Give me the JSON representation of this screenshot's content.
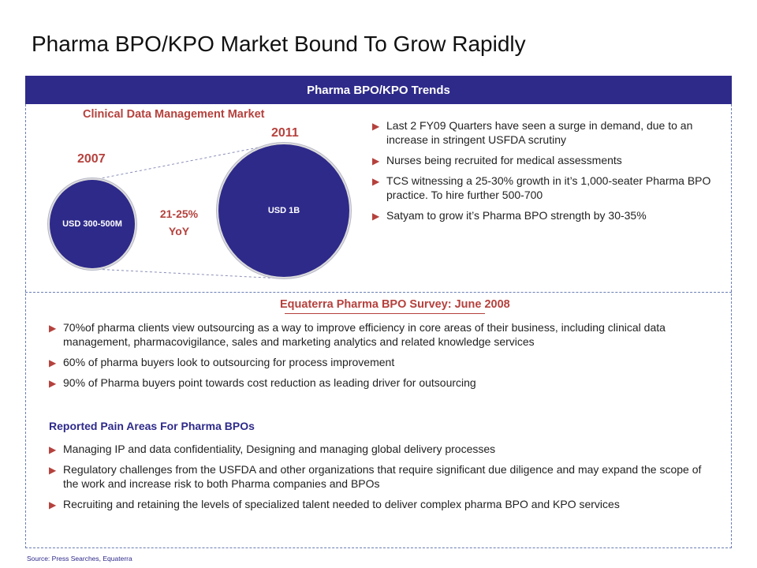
{
  "title": "Pharma BPO/KPO Market Bound To Grow Rapidly",
  "panel_header": "Pharma BPO/KPO Trends",
  "clinical": {
    "title": "Clinical Data Management Market",
    "year_left": "2007",
    "year_right": "2011",
    "bubble_left": "USD 300-500M",
    "bubble_right": "USD 1B",
    "growth_line1": "21-25%",
    "growth_line2": "YoY"
  },
  "trends": [
    "Last 2 FY09 Quarters have seen a surge in demand, due to an increase in stringent USFDA scrutiny",
    "Nurses being recruited for medical assessments",
    "TCS witnessing a 25-30% growth in it’s 1,000-seater Pharma BPO practice. To hire further 500-700",
    "Satyam to grow it’s Pharma BPO strength by 30-35%"
  ],
  "survey": {
    "title": "Equaterra Pharma BPO Survey: June 2008",
    "items": [
      "70%of pharma clients view outsourcing as a way to improve efficiency in core areas of their business, including clinical data management, pharmacovigilance, sales and marketing analytics and related knowledge services",
      "60% of pharma buyers look to outsourcing for process improvement",
      "90% of Pharma buyers point towards cost reduction as leading driver for outsourcing"
    ]
  },
  "pain": {
    "title": "Reported Pain Areas For Pharma BPOs",
    "items": [
      "Managing IP and data confidentiality, Designing and managing global delivery processes",
      "Regulatory challenges from the USFDA and other organizations that require significant due diligence and may expand the scope of the work and increase risk to both Pharma companies and BPOs",
      "Recruiting and retaining the levels of specialized talent needed to deliver complex pharma BPO and KPO services"
    ]
  },
  "source": "Source: Press Searches, Equaterra",
  "colors": {
    "header_bg": "#2e2a8a",
    "accent": "#b5413d",
    "bubble": "#2e2a8a"
  },
  "icons": {
    "bullet": "triangle-right-icon"
  }
}
